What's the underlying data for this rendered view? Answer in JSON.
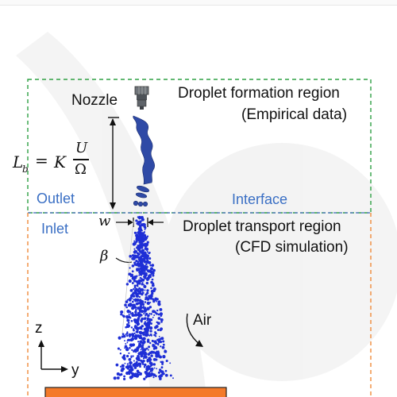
{
  "nozzle_label": "Nozzle",
  "formation_region": {
    "title": "Droplet formation region",
    "subtitle": "(Empirical data)"
  },
  "transport_region": {
    "title": "Droplet transport region",
    "subtitle": "(CFD simulation)"
  },
  "outlet_label": "Outlet",
  "interface_label": "Interface",
  "inlet_label": "Inlet",
  "w_symbol": "w",
  "beta_symbol": "β",
  "air_label": "Air",
  "axis_z": "z",
  "axis_y": "y",
  "formula": {
    "lhs": "L",
    "lhs_sub": "b",
    "eq": "=",
    "k": "K",
    "num": "U",
    "den": "Ω"
  },
  "colors": {
    "green_box": "#2ea043",
    "orange_box": "#f08a3a",
    "droplet": "#1f2fd6",
    "interface_line": "#5a7fc0",
    "ground": "#f47a2a"
  }
}
